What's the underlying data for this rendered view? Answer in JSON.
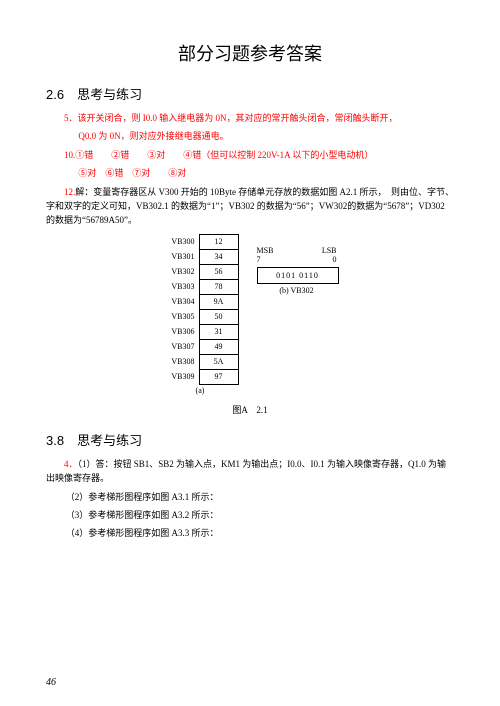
{
  "title": "部分习题参考答案",
  "sec2_6": "2.6　思考与练习",
  "q5a": "5．该开关闭合，则 I0.0 输入继电器为 0N，其对应的常开触头闭合，常闭触头断开，",
  "q5b": "Q0.0 为 0N，则对应外接继电器通电。",
  "q10a": "10.①错　　②错　　③对　　④错（但可以控制 220V-1A 以下的小型电动机）",
  "q10b": "⑤对　⑥错　⑦对　　⑧对",
  "q12": "12.解：变量寄存器区从 V300 开始的 10Byte 存储单元存放的数据如图 A2.1 所示，　则由位、字节、字和双字的定义可知，VB302.1 的数据为“1”；VB302 的数据为“56”；VW302的数据为“5678”；VD302 的数据为“56789A50”。",
  "vb_rows": [
    {
      "lbl": "VB300",
      "val": "12"
    },
    {
      "lbl": "VB301",
      "val": "34"
    },
    {
      "lbl": "VB302",
      "val": "56"
    },
    {
      "lbl": "VB303",
      "val": "78"
    },
    {
      "lbl": "VB304",
      "val": "9A"
    },
    {
      "lbl": "VB305",
      "val": "50"
    },
    {
      "lbl": "VB306",
      "val": "31"
    },
    {
      "lbl": "VB307",
      "val": "49"
    },
    {
      "lbl": "VB308",
      "val": "5A"
    },
    {
      "lbl": "VB309",
      "val": "97"
    }
  ],
  "cap_a": "(a)",
  "msb": "MSB",
  "lsb": "LSB",
  "bit7": "7",
  "bit0": "0",
  "byte_bits": "0101 0110",
  "cap_b": "(b) VB302",
  "fig_cap": "图A　2.1",
  "sec3_8": "3.8　思考与练习",
  "q4_1": "4．（1）答：按钮 SB1、SB2 为输入点，KM1 为输出点；I0.0、I0.1 为输入映像寄存器，Q1.0 为输出映像寄存器。",
  "q4_2": "（2）参考梯形图程序如图 A3.1 所示：",
  "q4_3": "（3）参考梯形图程序如图 A3.2 所示：",
  "q4_4": "（4）参考梯形图程序如图 A3.3 所示：",
  "page_num": "46"
}
